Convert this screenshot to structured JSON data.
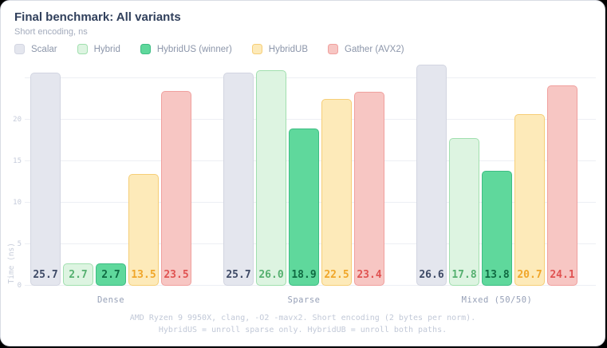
{
  "header": {
    "title": "Final benchmark: All variants",
    "subtitle": "Short encoding, ns"
  },
  "chart_data": {
    "type": "bar",
    "title": "Final benchmark: All variants",
    "subtitle": "Short encoding, ns",
    "categories": [
      "Dense",
      "Sparse",
      "Mixed (50/50)"
    ],
    "series": [
      {
        "name": "Scalar",
        "values": [
          25.7,
          25.7,
          26.6
        ],
        "fill": "#e4e6ee",
        "border": "#d2d5e1",
        "label_color": "#3e4a66"
      },
      {
        "name": "Hybrid",
        "values": [
          2.7,
          26.0,
          17.8
        ],
        "fill": "#ddf4e1",
        "border": "#a0dfae",
        "label_color": "#55b06f"
      },
      {
        "name": "HybridUS (winner)",
        "values": [
          2.7,
          18.9,
          13.8
        ],
        "fill": "#5fd89c",
        "border": "#3dbd83",
        "label_color": "#0f6b42"
      },
      {
        "name": "HybridUB",
        "values": [
          13.5,
          22.5,
          20.7
        ],
        "fill": "#fdeab9",
        "border": "#f6ce77",
        "label_color": "#f0a62a"
      },
      {
        "name": "Gather (AVX2)",
        "values": [
          23.5,
          23.4,
          24.1
        ],
        "fill": "#f7c6c3",
        "border": "#f0a09e",
        "label_color": "#e05352"
      }
    ],
    "xlabel": "",
    "ylabel": "Time (ns)",
    "ylim": [
      0,
      25
    ],
    "yticks": [
      0,
      5,
      10,
      15,
      20
    ],
    "gridlines": [
      0,
      5,
      10,
      15,
      20,
      25
    ],
    "grid": "horizontal",
    "legend_position": "top",
    "value_labels": "inside-base, one decimal"
  },
  "footer": {
    "line1": "AMD Ryzen 9 9950X, clang, -O2 -mavx2. Short encoding (2 bytes per norm).",
    "line2": "HybridUS = unroll sparse only. HybridUB = unroll both paths."
  }
}
